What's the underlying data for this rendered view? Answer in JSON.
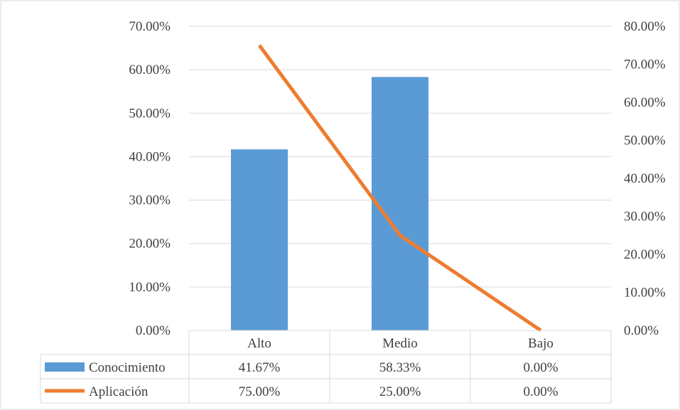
{
  "chart_data": {
    "type": "bar",
    "categories": [
      "Alto",
      "Medio",
      "Bajo"
    ],
    "series": [
      {
        "name": "Conocimiento",
        "kind": "bar",
        "axis": "left",
        "color": "#5b9bd5",
        "values": [
          41.67,
          58.33,
          0.0
        ],
        "labels": [
          "41.67%",
          "58.33%",
          "0.00%"
        ]
      },
      {
        "name": "Aplicación",
        "kind": "line",
        "axis": "right",
        "color": "#ed7d31",
        "values": [
          75.0,
          25.0,
          0.0
        ],
        "labels": [
          "75.00%",
          "25.00%",
          "0.00%"
        ]
      }
    ],
    "y_left": {
      "min": 0,
      "max": 70,
      "ticks": [
        "0.00%",
        "10.00%",
        "20.00%",
        "30.00%",
        "40.00%",
        "50.00%",
        "60.00%",
        "70.00%"
      ]
    },
    "y_right": {
      "min": 0,
      "max": 80,
      "ticks": [
        "0.00%",
        "10.00%",
        "20.00%",
        "30.00%",
        "40.00%",
        "50.00%",
        "60.00%",
        "70.00%",
        "80.00%"
      ]
    },
    "grid": true,
    "legend": "data-table"
  }
}
